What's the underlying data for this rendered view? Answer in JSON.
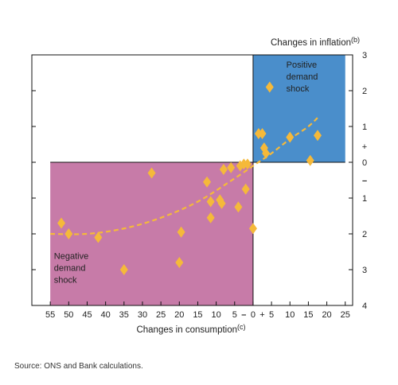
{
  "chart_data": {
    "type": "scatter",
    "title": "",
    "xlabel": "Changes in consumption",
    "xlabel_note": "(c)",
    "ylabel": "Changes in inflation",
    "ylabel_note": "(b)",
    "xlim": [
      -60,
      27
    ],
    "ylim": [
      -4,
      3
    ],
    "x_ticks": [
      {
        "v": -55,
        "label": "55"
      },
      {
        "v": -50,
        "label": "50"
      },
      {
        "v": -45,
        "label": "45"
      },
      {
        "v": -40,
        "label": "40"
      },
      {
        "v": -35,
        "label": "35"
      },
      {
        "v": -30,
        "label": "30"
      },
      {
        "v": -25,
        "label": "25"
      },
      {
        "v": -20,
        "label": "20"
      },
      {
        "v": -15,
        "label": "15"
      },
      {
        "v": -10,
        "label": "10"
      },
      {
        "v": -5,
        "label": "5"
      },
      {
        "v": 0,
        "label": "0"
      },
      {
        "v": 5,
        "label": "5"
      },
      {
        "v": 10,
        "label": "10"
      },
      {
        "v": 15,
        "label": "15"
      },
      {
        "v": 20,
        "label": "20"
      },
      {
        "v": 25,
        "label": "25"
      }
    ],
    "x_sign_labels": {
      "negative": "–",
      "positive": "+"
    },
    "y_ticks": [
      {
        "v": 3,
        "label": "3"
      },
      {
        "v": 2,
        "label": "2"
      },
      {
        "v": 1,
        "label": "1"
      },
      {
        "v": 0,
        "label": "0"
      },
      {
        "v": -1,
        "label": "1"
      },
      {
        "v": -2,
        "label": "2"
      },
      {
        "v": -3,
        "label": "3"
      },
      {
        "v": -4,
        "label": "4"
      }
    ],
    "y_sign_labels": {
      "positive": "+",
      "negative": "–"
    },
    "regions": [
      {
        "name": "positive-demand-shock",
        "label": [
          "Positive",
          "demand",
          "shock"
        ],
        "x_range": [
          0,
          25
        ],
        "y_range": [
          0,
          3
        ],
        "color": "#4a8ecb"
      },
      {
        "name": "negative-demand-shock",
        "label": [
          "Negative",
          "demand",
          "shock"
        ],
        "x_range": [
          -55,
          0
        ],
        "y_range": [
          -4,
          0
        ],
        "color": "#c77ba8"
      }
    ],
    "points": [
      {
        "x": -52,
        "y": -1.7
      },
      {
        "x": -50,
        "y": -2.0
      },
      {
        "x": -42,
        "y": -2.1
      },
      {
        "x": -35,
        "y": -3.0
      },
      {
        "x": -27.5,
        "y": -0.3
      },
      {
        "x": -20,
        "y": -2.8
      },
      {
        "x": -19.5,
        "y": -1.95
      },
      {
        "x": -12.5,
        "y": -0.55
      },
      {
        "x": -11.5,
        "y": -1.1
      },
      {
        "x": -11.5,
        "y": -1.55
      },
      {
        "x": -9,
        "y": -1.05
      },
      {
        "x": -8.5,
        "y": -1.15
      },
      {
        "x": -8,
        "y": -0.2
      },
      {
        "x": -6,
        "y": -0.15
      },
      {
        "x": -4,
        "y": -1.25
      },
      {
        "x": -3.5,
        "y": -0.1
      },
      {
        "x": -2.5,
        "y": -0.05
      },
      {
        "x": -2,
        "y": -0.75
      },
      {
        "x": -1.5,
        "y": -0.05
      },
      {
        "x": 0,
        "y": -1.85
      },
      {
        "x": 1.5,
        "y": 0.8
      },
      {
        "x": 2.5,
        "y": 0.8
      },
      {
        "x": 3,
        "y": 0.4
      },
      {
        "x": 3.5,
        "y": 0.25
      },
      {
        "x": 4.5,
        "y": 2.1
      },
      {
        "x": 10,
        "y": 0.7
      },
      {
        "x": 15.5,
        "y": 0.05
      },
      {
        "x": 17.5,
        "y": 0.75
      }
    ],
    "trend": {
      "style": "dashed",
      "color": "#f5b93a",
      "x": [
        -55,
        -45,
        -35,
        -25,
        -15,
        -5,
        0,
        5,
        10,
        15,
        18
      ],
      "y": [
        -2.0,
        -2.0,
        -1.85,
        -1.55,
        -1.1,
        -0.45,
        -0.1,
        0.25,
        0.65,
        1.0,
        1.3
      ]
    },
    "marker_color": "#f5b93a",
    "grid": false
  },
  "source": "Source: ONS and Bank calculations."
}
